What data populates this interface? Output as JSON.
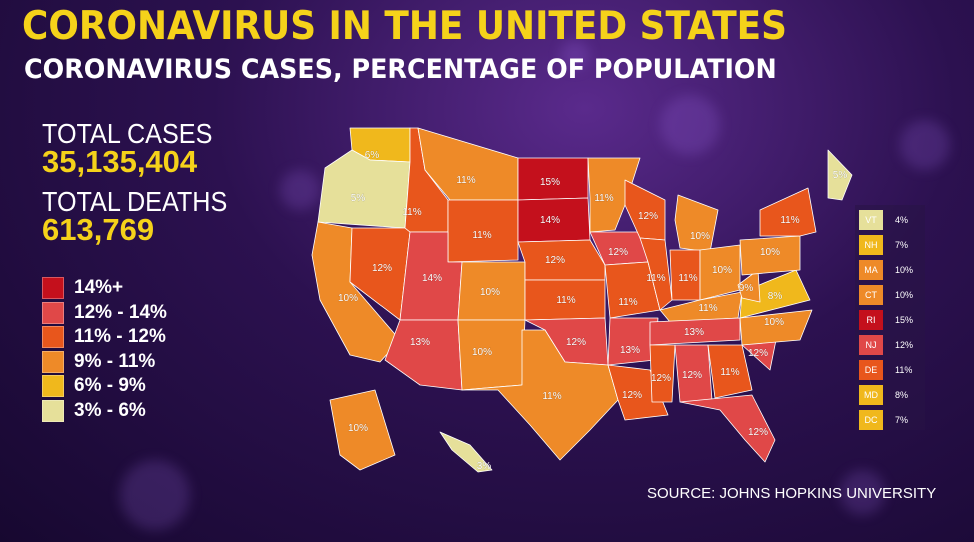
{
  "title": "CORONAVIRUS IN THE UNITED STATES",
  "subtitle": "CORONAVIRUS CASES, PERCENTAGE OF POPULATION",
  "stats": {
    "total_cases_label": "TOTAL CASES",
    "total_cases_value": "35,135,404",
    "total_deaths_label": "TOTAL DEATHS",
    "total_deaths_value": "613,769"
  },
  "legend": [
    {
      "label": "14%+",
      "color": "#c4101c"
    },
    {
      "label": "12% - 14%",
      "color": "#e04848"
    },
    {
      "label": "11% - 12%",
      "color": "#e8561c"
    },
    {
      "label": "9% - 11%",
      "color": "#ee8a28"
    },
    {
      "label": "6% - 9%",
      "color": "#f0b81c"
    },
    {
      "label": "3% - 6%",
      "color": "#e6e09a"
    }
  ],
  "states": [
    {
      "abbr": "WA",
      "pct": "6%",
      "color": "#f0b81c"
    },
    {
      "abbr": "OR",
      "pct": "5%",
      "color": "#e6e09a"
    },
    {
      "abbr": "CA",
      "pct": "10%",
      "color": "#ee8a28"
    },
    {
      "abbr": "NV",
      "pct": "12%",
      "color": "#e8561c"
    },
    {
      "abbr": "ID",
      "pct": "11%",
      "color": "#e8561c"
    },
    {
      "abbr": "MT",
      "pct": "11%",
      "color": "#ee8a28"
    },
    {
      "abbr": "WY",
      "pct": "11%",
      "color": "#e8561c"
    },
    {
      "abbr": "UT",
      "pct": "14%",
      "color": "#e04848"
    },
    {
      "abbr": "AZ",
      "pct": "13%",
      "color": "#e04848"
    },
    {
      "abbr": "CO",
      "pct": "10%",
      "color": "#ee8a28"
    },
    {
      "abbr": "NM",
      "pct": "10%",
      "color": "#ee8a28"
    },
    {
      "abbr": "ND",
      "pct": "15%",
      "color": "#c4101c"
    },
    {
      "abbr": "SD",
      "pct": "14%",
      "color": "#c4101c"
    },
    {
      "abbr": "NE",
      "pct": "12%",
      "color": "#e8561c"
    },
    {
      "abbr": "KS",
      "pct": "11%",
      "color": "#e8561c"
    },
    {
      "abbr": "OK",
      "pct": "12%",
      "color": "#e04848"
    },
    {
      "abbr": "TX",
      "pct": "11%",
      "color": "#ee8a28"
    },
    {
      "abbr": "MN",
      "pct": "11%",
      "color": "#ee8a28"
    },
    {
      "abbr": "IA",
      "pct": "12%",
      "color": "#e04848"
    },
    {
      "abbr": "MO",
      "pct": "11%",
      "color": "#e8561c"
    },
    {
      "abbr": "AR",
      "pct": "13%",
      "color": "#e04848"
    },
    {
      "abbr": "LA",
      "pct": "12%",
      "color": "#e8561c"
    },
    {
      "abbr": "WI",
      "pct": "12%",
      "color": "#e8561c"
    },
    {
      "abbr": "IL",
      "pct": "11%",
      "color": "#e8561c"
    },
    {
      "abbr": "MI",
      "pct": "10%",
      "color": "#ee8a28"
    },
    {
      "abbr": "IN",
      "pct": "11%",
      "color": "#e8561c"
    },
    {
      "abbr": "OH",
      "pct": "10%",
      "color": "#ee8a28"
    },
    {
      "abbr": "KY",
      "pct": "11%",
      "color": "#ee8a28"
    },
    {
      "abbr": "TN",
      "pct": "13%",
      "color": "#e04848"
    },
    {
      "abbr": "MS",
      "pct": "12%",
      "color": "#e8561c"
    },
    {
      "abbr": "AL",
      "pct": "12%",
      "color": "#e04848"
    },
    {
      "abbr": "GA",
      "pct": "11%",
      "color": "#e8561c"
    },
    {
      "abbr": "FL",
      "pct": "12%",
      "color": "#e04848"
    },
    {
      "abbr": "SC",
      "pct": "12%",
      "color": "#e04848"
    },
    {
      "abbr": "NC",
      "pct": "10%",
      "color": "#ee8a28"
    },
    {
      "abbr": "VA",
      "pct": "8%",
      "color": "#f0b81c"
    },
    {
      "abbr": "WV",
      "pct": "9%",
      "color": "#ee8a28"
    },
    {
      "abbr": "PA",
      "pct": "10%",
      "color": "#ee8a28"
    },
    {
      "abbr": "NY",
      "pct": "11%",
      "color": "#e8561c"
    },
    {
      "abbr": "ME",
      "pct": "5%",
      "color": "#e6e09a"
    },
    {
      "abbr": "AK",
      "pct": "10%",
      "color": "#ee8a28"
    },
    {
      "abbr": "HI",
      "pct": "3%",
      "color": "#e6e09a"
    }
  ],
  "northeast_table": [
    {
      "abbr": "VT",
      "pct": "4%",
      "color": "#e6e09a"
    },
    {
      "abbr": "NH",
      "pct": "7%",
      "color": "#f0b81c"
    },
    {
      "abbr": "MA",
      "pct": "10%",
      "color": "#ee8a28"
    },
    {
      "abbr": "CT",
      "pct": "10%",
      "color": "#ee8a28"
    },
    {
      "abbr": "RI",
      "pct": "15%",
      "color": "#c4101c"
    },
    {
      "abbr": "NJ",
      "pct": "12%",
      "color": "#e04848"
    },
    {
      "abbr": "DE",
      "pct": "11%",
      "color": "#e8561c"
    },
    {
      "abbr": "MD",
      "pct": "8%",
      "color": "#f0b81c"
    },
    {
      "abbr": "DC",
      "pct": "7%",
      "color": "#f0b81c"
    }
  ],
  "source": "SOURCE: JOHNS HOPKINS UNIVERSITY"
}
